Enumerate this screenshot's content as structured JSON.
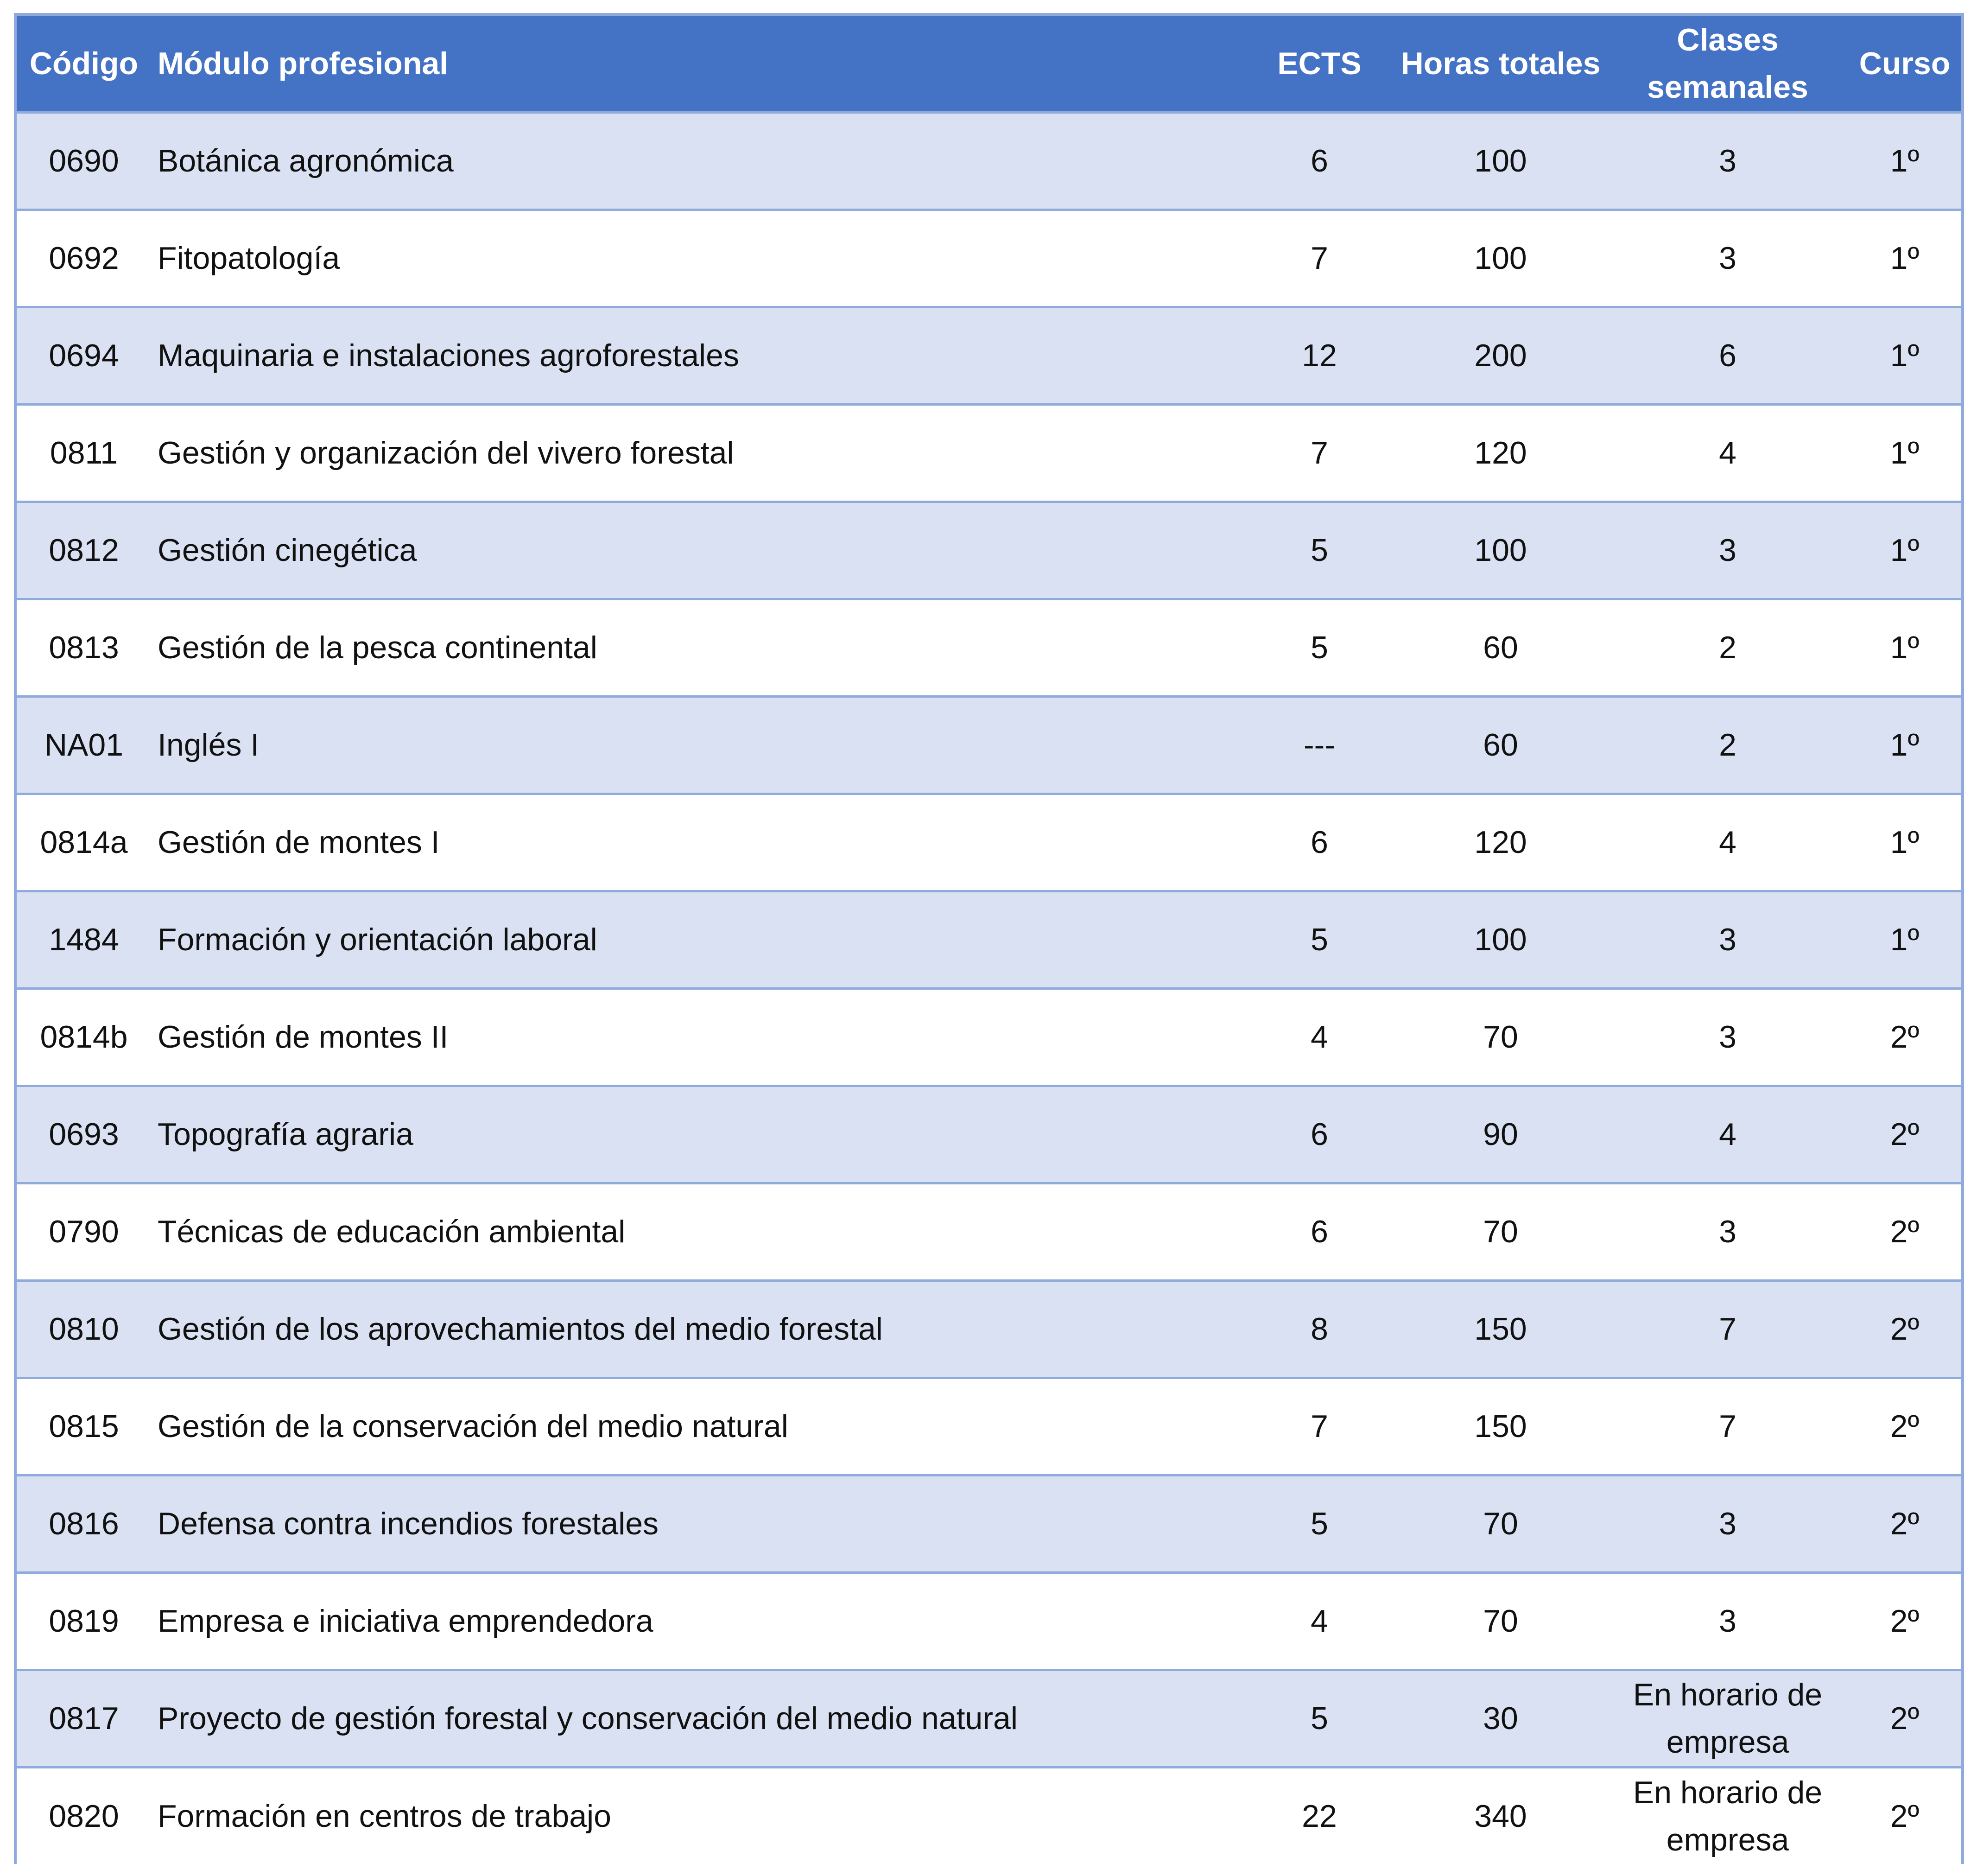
{
  "table": {
    "headers": {
      "code": "Código",
      "module": "Módulo profesional",
      "ects": "ECTS",
      "hours": "Horas totales",
      "weekly": "Clases semanales",
      "course": "Curso"
    },
    "rows": [
      {
        "code": "0690",
        "module": "Botánica agronómica",
        "ects": "6",
        "hours": "100",
        "weekly": "3",
        "course": "1º"
      },
      {
        "code": "0692",
        "module": "Fitopatología",
        "ects": "7",
        "hours": "100",
        "weekly": "3",
        "course": "1º"
      },
      {
        "code": "0694",
        "module": "Maquinaria e instalaciones agroforestales",
        "ects": "12",
        "hours": "200",
        "weekly": "6",
        "course": "1º"
      },
      {
        "code": "0811",
        "module": "Gestión y organización del vivero forestal",
        "ects": "7",
        "hours": "120",
        "weekly": "4",
        "course": "1º"
      },
      {
        "code": "0812",
        "module": "Gestión cinegética",
        "ects": "5",
        "hours": "100",
        "weekly": "3",
        "course": "1º"
      },
      {
        "code": "0813",
        "module": "Gestión de la pesca continental",
        "ects": "5",
        "hours": "60",
        "weekly": "2",
        "course": "1º"
      },
      {
        "code": "NA01",
        "module": "Inglés I",
        "ects": "---",
        "hours": "60",
        "weekly": "2",
        "course": "1º"
      },
      {
        "code": "0814a",
        "module": "Gestión de montes I",
        "ects": "6",
        "hours": "120",
        "weekly": "4",
        "course": "1º"
      },
      {
        "code": "1484",
        "module": "Formación y orientación laboral",
        "ects": "5",
        "hours": "100",
        "weekly": "3",
        "course": "1º"
      },
      {
        "code": "0814b",
        "module": "Gestión de montes II",
        "ects": "4",
        "hours": "70",
        "weekly": "3",
        "course": "2º"
      },
      {
        "code": "0693",
        "module": "Topografía agraria",
        "ects": "6",
        "hours": "90",
        "weekly": "4",
        "course": "2º"
      },
      {
        "code": "0790",
        "module": "Técnicas de educación ambiental",
        "ects": "6",
        "hours": "70",
        "weekly": "3",
        "course": "2º"
      },
      {
        "code": "0810",
        "module": "Gestión de los aprovechamientos del medio forestal",
        "ects": "8",
        "hours": "150",
        "weekly": "7",
        "course": "2º"
      },
      {
        "code": "0815",
        "module": "Gestión de la conservación del medio natural",
        "ects": "7",
        "hours": "150",
        "weekly": "7",
        "course": "2º"
      },
      {
        "code": "0816",
        "module": "Defensa contra incendios forestales",
        "ects": "5",
        "hours": "70",
        "weekly": "3",
        "course": "2º"
      },
      {
        "code": "0819",
        "module": "Empresa e iniciativa emprendedora",
        "ects": "4",
        "hours": "70",
        "weekly": "3",
        "course": "2º"
      },
      {
        "code": "0817",
        "module": "Proyecto de gestión forestal y conservación del medio natural",
        "ects": "5",
        "hours": "30",
        "weekly": "En horario de empresa",
        "course": "2º"
      },
      {
        "code": "0820",
        "module": "Formación en centros de trabajo",
        "ects": "22",
        "hours": "340",
        "weekly": "En horario de empresa",
        "course": "2º"
      }
    ]
  },
  "colors": {
    "header_bg": "#4472c4",
    "header_text": "#ffffff",
    "band_row": "#d9e1f2",
    "plain_row": "#ffffff",
    "border": "#8faadc"
  }
}
